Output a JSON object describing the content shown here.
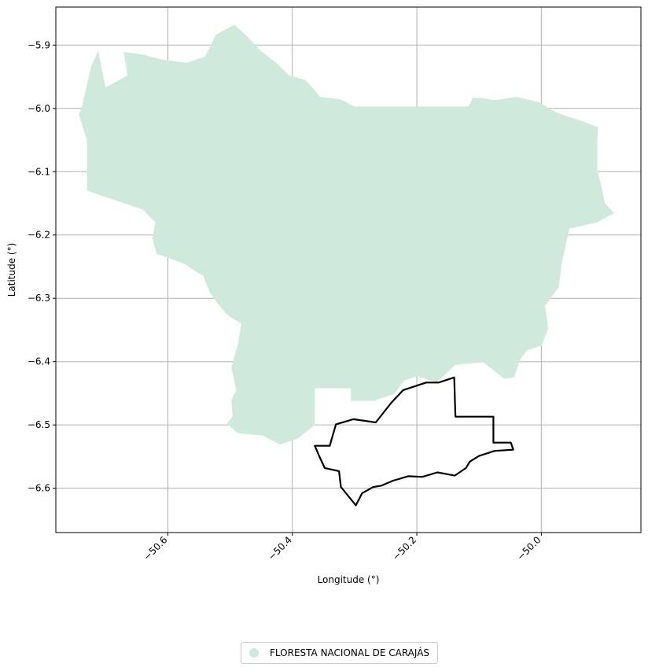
{
  "chart_data": {
    "type": "map",
    "xlabel": "Longitude (°)",
    "ylabel": "Latitude (°)",
    "xlim": [
      -50.78,
      -49.84
    ],
    "ylim": [
      -6.67,
      -5.84
    ],
    "xticks": [
      -50.6,
      -50.4,
      -50.2,
      -50.0
    ],
    "xtick_labels": [
      "−50.6",
      "−50.4",
      "−50.2",
      "−50.0"
    ],
    "yticks": [
      -5.9,
      -6.0,
      -6.1,
      -6.2,
      -6.3,
      -6.4,
      -6.5,
      -6.6
    ],
    "ytick_labels": [
      "−5.9",
      "−6.0",
      "−6.1",
      "−6.2",
      "−6.3",
      "−6.4",
      "−6.5",
      "−6.6"
    ],
    "grid": true,
    "legend_position": "bottom-center",
    "colors": {
      "fill": "#cfeadd",
      "outline": "#000000",
      "grid": "#b0b0b0"
    },
    "series": [
      {
        "name": "FLORESTA NACIONAL DE CARAJÁS",
        "kind": "polygon",
        "coords": [
          [
            -50.738,
            -5.997
          ],
          [
            -50.723,
            -5.933
          ],
          [
            -50.712,
            -5.909
          ],
          [
            -50.7,
            -5.967
          ],
          [
            -50.665,
            -5.948
          ],
          [
            -50.671,
            -5.911
          ],
          [
            -50.64,
            -5.915
          ],
          [
            -50.61,
            -5.923
          ],
          [
            -50.57,
            -5.928
          ],
          [
            -50.54,
            -5.918
          ],
          [
            -50.523,
            -5.884
          ],
          [
            -50.509,
            -5.876
          ],
          [
            -50.493,
            -5.868
          ],
          [
            -50.475,
            -5.884
          ],
          [
            -50.452,
            -5.908
          ],
          [
            -50.425,
            -5.929
          ],
          [
            -50.405,
            -5.948
          ],
          [
            -50.379,
            -5.955
          ],
          [
            -50.355,
            -5.982
          ],
          [
            -50.322,
            -5.986
          ],
          [
            -50.3,
            -5.997
          ],
          [
            -50.25,
            -5.997
          ],
          [
            -50.2,
            -5.997
          ],
          [
            -50.15,
            -5.997
          ],
          [
            -50.117,
            -5.997
          ],
          [
            -50.11,
            -5.983
          ],
          [
            -50.094,
            -5.984
          ],
          [
            -50.076,
            -5.987
          ],
          [
            -50.04,
            -5.982
          ],
          [
            -50.004,
            -5.99
          ],
          [
            -49.975,
            -6.007
          ],
          [
            -49.935,
            -6.02
          ],
          [
            -49.909,
            -6.03
          ],
          [
            -49.91,
            -6.05
          ],
          [
            -49.91,
            -6.1
          ],
          [
            -49.904,
            -6.12
          ],
          [
            -49.898,
            -6.15
          ],
          [
            -49.883,
            -6.165
          ],
          [
            -49.91,
            -6.18
          ],
          [
            -49.955,
            -6.19
          ],
          [
            -49.967,
            -6.243
          ],
          [
            -49.972,
            -6.283
          ],
          [
            -49.994,
            -6.312
          ],
          [
            -49.989,
            -6.348
          ],
          [
            -50.0,
            -6.375
          ],
          [
            -50.023,
            -6.382
          ],
          [
            -50.034,
            -6.397
          ],
          [
            -50.044,
            -6.425
          ],
          [
            -50.06,
            -6.427
          ],
          [
            -50.093,
            -6.401
          ],
          [
            -50.138,
            -6.405
          ],
          [
            -50.168,
            -6.433
          ],
          [
            -50.2,
            -6.423
          ],
          [
            -50.22,
            -6.43
          ],
          [
            -50.236,
            -6.451
          ],
          [
            -50.266,
            -6.461
          ],
          [
            -50.266,
            -6.462
          ],
          [
            -50.306,
            -6.462
          ],
          [
            -50.306,
            -6.442
          ],
          [
            -50.364,
            -6.442
          ],
          [
            -50.364,
            -6.5
          ],
          [
            -50.392,
            -6.522
          ],
          [
            -50.42,
            -6.531
          ],
          [
            -50.448,
            -6.517
          ],
          [
            -50.488,
            -6.513
          ],
          [
            -50.505,
            -6.498
          ],
          [
            -50.496,
            -6.486
          ],
          [
            -50.498,
            -6.461
          ],
          [
            -50.49,
            -6.445
          ],
          [
            -50.498,
            -6.41
          ],
          [
            -50.487,
            -6.37
          ],
          [
            -50.482,
            -6.34
          ],
          [
            -50.504,
            -6.327
          ],
          [
            -50.519,
            -6.31
          ],
          [
            -50.533,
            -6.29
          ],
          [
            -50.543,
            -6.265
          ],
          [
            -50.575,
            -6.245
          ],
          [
            -50.599,
            -6.236
          ],
          [
            -50.618,
            -6.23
          ],
          [
            -50.625,
            -6.205
          ],
          [
            -50.62,
            -6.18
          ],
          [
            -50.64,
            -6.16
          ],
          [
            -50.7,
            -6.14
          ],
          [
            -50.73,
            -6.13
          ],
          [
            -50.73,
            -6.05
          ],
          [
            -50.743,
            -6.01
          ]
        ]
      },
      {
        "name": "",
        "kind": "boundary",
        "coords": [
          [
            -50.33,
            -6.499
          ],
          [
            -50.302,
            -6.491
          ],
          [
            -50.266,
            -6.496
          ],
          [
            -50.241,
            -6.465
          ],
          [
            -50.222,
            -6.445
          ],
          [
            -50.185,
            -6.433
          ],
          [
            -50.165,
            -6.433
          ],
          [
            -50.14,
            -6.425
          ],
          [
            -50.138,
            -6.487
          ],
          [
            -50.077,
            -6.487
          ],
          [
            -50.077,
            -6.528
          ],
          [
            -50.049,
            -6.528
          ],
          [
            -50.045,
            -6.539
          ],
          [
            -50.075,
            -6.541
          ],
          [
            -50.1,
            -6.549
          ],
          [
            -50.115,
            -6.558
          ],
          [
            -50.121,
            -6.568
          ],
          [
            -50.139,
            -6.58
          ],
          [
            -50.167,
            -6.575
          ],
          [
            -50.191,
            -6.582
          ],
          [
            -50.214,
            -6.581
          ],
          [
            -50.238,
            -6.588
          ],
          [
            -50.257,
            -6.596
          ],
          [
            -50.27,
            -6.598
          ],
          [
            -50.288,
            -6.608
          ],
          [
            -50.298,
            -6.627
          ],
          [
            -50.308,
            -6.615
          ],
          [
            -50.322,
            -6.598
          ],
          [
            -50.325,
            -6.573
          ],
          [
            -50.348,
            -6.568
          ],
          [
            -50.357,
            -6.549
          ],
          [
            -50.364,
            -6.533
          ],
          [
            -50.34,
            -6.533
          ],
          [
            -50.33,
            -6.499
          ]
        ]
      }
    ]
  }
}
